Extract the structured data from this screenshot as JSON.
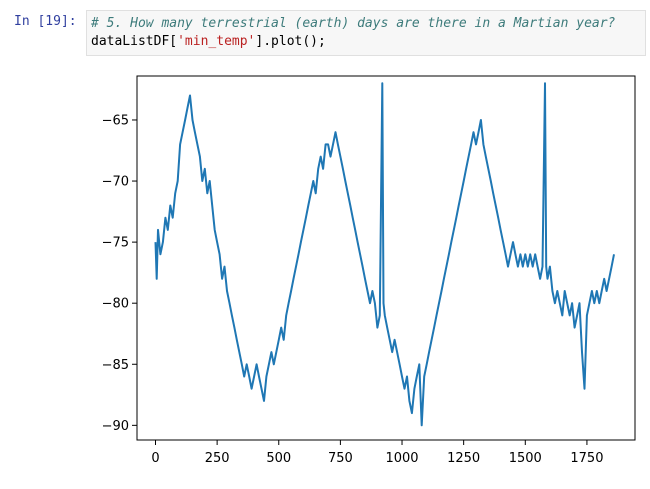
{
  "cell": {
    "prompt": "In [19]:",
    "code": {
      "comment": "# 5. How many terrestrial (earth) days are there in a Martian year?",
      "line2": {
        "var": "dataListDF",
        "open": "[",
        "key": "'min_temp'",
        "close": "].plot();"
      }
    }
  },
  "chart_data": {
    "type": "line",
    "title": "",
    "xlabel": "",
    "ylabel": "",
    "xlim": [
      -75,
      1945
    ],
    "ylim": [
      -91.2,
      -61.4
    ],
    "x_ticks": [
      0,
      250,
      500,
      750,
      1000,
      1250,
      1500,
      1750
    ],
    "y_ticks": [
      -65,
      -70,
      -75,
      -80,
      -85,
      -90
    ],
    "grid": false,
    "line_color": "#1f77b4",
    "series": [
      {
        "points": [
          [
            0,
            -75
          ],
          [
            5,
            -78
          ],
          [
            10,
            -74
          ],
          [
            20,
            -76
          ],
          [
            30,
            -75
          ],
          [
            40,
            -73
          ],
          [
            50,
            -74
          ],
          [
            60,
            -72
          ],
          [
            70,
            -73
          ],
          [
            80,
            -71
          ],
          [
            90,
            -70
          ],
          [
            100,
            -67
          ],
          [
            110,
            -66
          ],
          [
            120,
            -65
          ],
          [
            130,
            -64
          ],
          [
            140,
            -63
          ],
          [
            150,
            -65
          ],
          [
            160,
            -66
          ],
          [
            170,
            -67
          ],
          [
            180,
            -68
          ],
          [
            190,
            -70
          ],
          [
            200,
            -69
          ],
          [
            210,
            -71
          ],
          [
            220,
            -70
          ],
          [
            230,
            -72
          ],
          [
            240,
            -74
          ],
          [
            250,
            -75
          ],
          [
            260,
            -76
          ],
          [
            270,
            -78
          ],
          [
            280,
            -77
          ],
          [
            290,
            -79
          ],
          [
            300,
            -80
          ],
          [
            310,
            -81
          ],
          [
            320,
            -82
          ],
          [
            330,
            -83
          ],
          [
            340,
            -84
          ],
          [
            350,
            -85
          ],
          [
            360,
            -86
          ],
          [
            370,
            -85
          ],
          [
            380,
            -86
          ],
          [
            390,
            -87
          ],
          [
            400,
            -86
          ],
          [
            410,
            -85
          ],
          [
            420,
            -86
          ],
          [
            430,
            -87
          ],
          [
            440,
            -88
          ],
          [
            450,
            -86
          ],
          [
            460,
            -85
          ],
          [
            470,
            -84
          ],
          [
            480,
            -85
          ],
          [
            490,
            -84
          ],
          [
            500,
            -83
          ],
          [
            510,
            -82
          ],
          [
            520,
            -83
          ],
          [
            530,
            -81
          ],
          [
            540,
            -80
          ],
          [
            550,
            -79
          ],
          [
            560,
            -78
          ],
          [
            570,
            -77
          ],
          [
            580,
            -76
          ],
          [
            590,
            -75
          ],
          [
            600,
            -74
          ],
          [
            610,
            -73
          ],
          [
            620,
            -72
          ],
          [
            630,
            -71
          ],
          [
            640,
            -70
          ],
          [
            650,
            -71
          ],
          [
            660,
            -69
          ],
          [
            670,
            -68
          ],
          [
            680,
            -69
          ],
          [
            690,
            -67
          ],
          [
            700,
            -67
          ],
          [
            710,
            -68
          ],
          [
            720,
            -67
          ],
          [
            730,
            -66
          ],
          [
            740,
            -67
          ],
          [
            750,
            -68
          ],
          [
            760,
            -69
          ],
          [
            770,
            -70
          ],
          [
            780,
            -71
          ],
          [
            790,
            -72
          ],
          [
            800,
            -73
          ],
          [
            810,
            -74
          ],
          [
            820,
            -75
          ],
          [
            830,
            -76
          ],
          [
            840,
            -77
          ],
          [
            850,
            -78
          ],
          [
            860,
            -79
          ],
          [
            870,
            -80
          ],
          [
            880,
            -79
          ],
          [
            890,
            -80
          ],
          [
            900,
            -82
          ],
          [
            910,
            -81
          ],
          [
            920,
            -62
          ],
          [
            925,
            -80
          ],
          [
            930,
            -81
          ],
          [
            940,
            -82
          ],
          [
            950,
            -83
          ],
          [
            960,
            -84
          ],
          [
            970,
            -83
          ],
          [
            980,
            -84
          ],
          [
            990,
            -85
          ],
          [
            1000,
            -86
          ],
          [
            1010,
            -87
          ],
          [
            1020,
            -86
          ],
          [
            1030,
            -88
          ],
          [
            1040,
            -89
          ],
          [
            1050,
            -87
          ],
          [
            1060,
            -86
          ],
          [
            1070,
            -85
          ],
          [
            1080,
            -90
          ],
          [
            1090,
            -86
          ],
          [
            1100,
            -85
          ],
          [
            1110,
            -84
          ],
          [
            1120,
            -83
          ],
          [
            1130,
            -82
          ],
          [
            1140,
            -81
          ],
          [
            1150,
            -80
          ],
          [
            1160,
            -79
          ],
          [
            1170,
            -78
          ],
          [
            1180,
            -77
          ],
          [
            1190,
            -76
          ],
          [
            1200,
            -75
          ],
          [
            1210,
            -74
          ],
          [
            1220,
            -73
          ],
          [
            1230,
            -72
          ],
          [
            1240,
            -71
          ],
          [
            1250,
            -70
          ],
          [
            1260,
            -69
          ],
          [
            1270,
            -68
          ],
          [
            1280,
            -67
          ],
          [
            1290,
            -66
          ],
          [
            1300,
            -67
          ],
          [
            1310,
            -66
          ],
          [
            1320,
            -65
          ],
          [
            1330,
            -67
          ],
          [
            1340,
            -68
          ],
          [
            1350,
            -69
          ],
          [
            1360,
            -70
          ],
          [
            1370,
            -71
          ],
          [
            1380,
            -72
          ],
          [
            1390,
            -73
          ],
          [
            1400,
            -74
          ],
          [
            1410,
            -75
          ],
          [
            1420,
            -76
          ],
          [
            1430,
            -77
          ],
          [
            1440,
            -76
          ],
          [
            1450,
            -75
          ],
          [
            1460,
            -76
          ],
          [
            1470,
            -77
          ],
          [
            1480,
            -76
          ],
          [
            1490,
            -77
          ],
          [
            1500,
            -76
          ],
          [
            1510,
            -77
          ],
          [
            1520,
            -76
          ],
          [
            1530,
            -77
          ],
          [
            1540,
            -76
          ],
          [
            1550,
            -77
          ],
          [
            1560,
            -78
          ],
          [
            1570,
            -77
          ],
          [
            1580,
            -62
          ],
          [
            1585,
            -77
          ],
          [
            1590,
            -78
          ],
          [
            1600,
            -77
          ],
          [
            1610,
            -79
          ],
          [
            1620,
            -80
          ],
          [
            1630,
            -79
          ],
          [
            1640,
            -80
          ],
          [
            1650,
            -81
          ],
          [
            1660,
            -79
          ],
          [
            1670,
            -80
          ],
          [
            1680,
            -81
          ],
          [
            1690,
            -80
          ],
          [
            1700,
            -82
          ],
          [
            1710,
            -81
          ],
          [
            1720,
            -80
          ],
          [
            1730,
            -84
          ],
          [
            1740,
            -87
          ],
          [
            1750,
            -81
          ],
          [
            1760,
            -80
          ],
          [
            1770,
            -79
          ],
          [
            1780,
            -80
          ],
          [
            1790,
            -79
          ],
          [
            1800,
            -80
          ],
          [
            1810,
            -79
          ],
          [
            1820,
            -78
          ],
          [
            1830,
            -79
          ],
          [
            1840,
            -78
          ],
          [
            1850,
            -77
          ],
          [
            1860,
            -76
          ]
        ]
      }
    ]
  }
}
